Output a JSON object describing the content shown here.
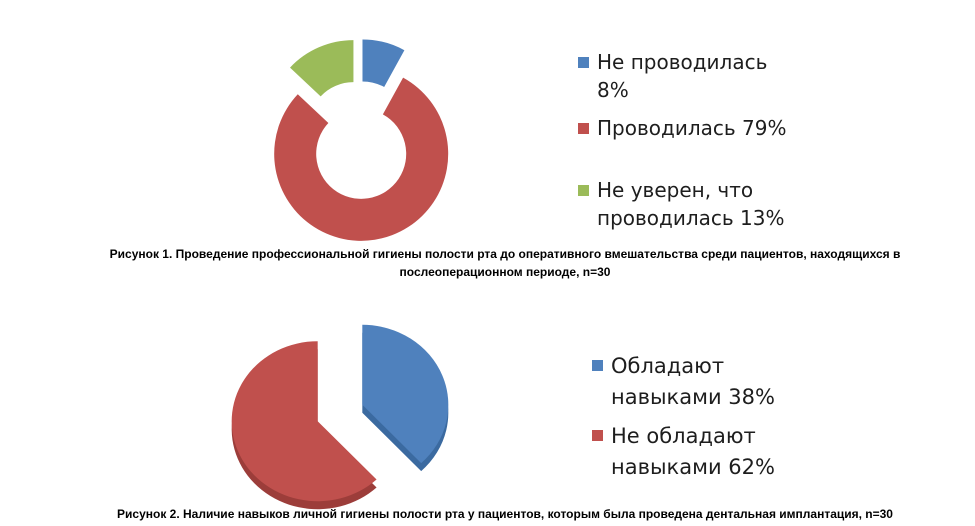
{
  "colors": {
    "blue": "#4f81bd",
    "red": "#c0504d",
    "green": "#9bbb59"
  },
  "chart_data": [
    {
      "type": "pie",
      "style": "doughnut-exploded",
      "categories": [
        "Не проводилась",
        "Проводилась",
        "Не уверен, что проводилась"
      ],
      "values": [
        8,
        79,
        13
      ],
      "legend": [
        {
          "line1": "Не проводилась",
          "line2": "8%"
        },
        {
          "line1": "Проводилась 79%",
          "line2": ""
        },
        {
          "line1": "Не уверен, что",
          "line2": "проводилась 13%"
        }
      ],
      "legend_placement": "right",
      "caption": "Рисунок 1. Проведение профессиональной гигиены полости рта до оперативного вмешательства среди пациентов, находящихся в послеоперационном периоде, n=30"
    },
    {
      "type": "pie",
      "style": "3d-exploded",
      "categories": [
        "Обладают навыками",
        "Не обладают навыками"
      ],
      "values": [
        38,
        62
      ],
      "legend": [
        {
          "line1": "Обладают",
          "line2": "навыками 38%"
        },
        {
          "line1": "Не обладают",
          "line2": "навыками 62%"
        }
      ],
      "legend_placement": "right",
      "caption": "Рисунок 2. Наличие навыков личной гигиены полости рта у пациентов, которым была проведена дентальная имплантация, n=30"
    }
  ]
}
